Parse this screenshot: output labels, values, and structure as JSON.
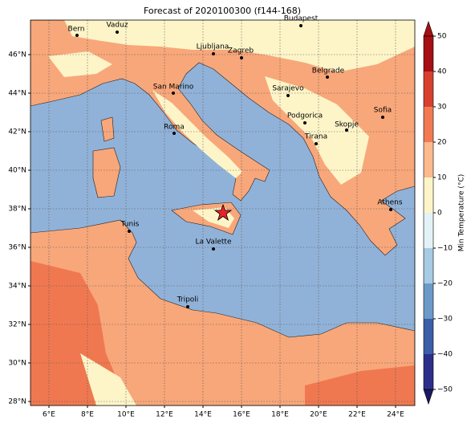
{
  "title": "Forecast of 2020100300 (f144-168)",
  "map": {
    "x_ticks": [
      "6°E",
      "8°E",
      "10°E",
      "12°E",
      "14°E",
      "16°E",
      "18°E",
      "20°E",
      "22°E",
      "24°E"
    ],
    "y_ticks": [
      "28°N",
      "30°N",
      "32°N",
      "34°N",
      "36°N",
      "38°N",
      "40°N",
      "42°N",
      "44°N",
      "46°N"
    ],
    "cities": [
      "Bern",
      "Vaduz",
      "Budapest",
      "Ljubljana",
      "Zagreb",
      "Belgrade",
      "Sarajevo",
      "San Marino",
      "Sofia",
      "Podgorica",
      "Skopje",
      "Roma",
      "Tirana",
      "Athens",
      "Tunis",
      "La Valette",
      "Tripoli"
    ]
  },
  "colorbar": {
    "label": "Min Temperature (°C)",
    "ticks": [
      "50",
      "40",
      "30",
      "20",
      "10",
      "0",
      "−10",
      "−20",
      "−30",
      "−40",
      "−50"
    ]
  }
}
